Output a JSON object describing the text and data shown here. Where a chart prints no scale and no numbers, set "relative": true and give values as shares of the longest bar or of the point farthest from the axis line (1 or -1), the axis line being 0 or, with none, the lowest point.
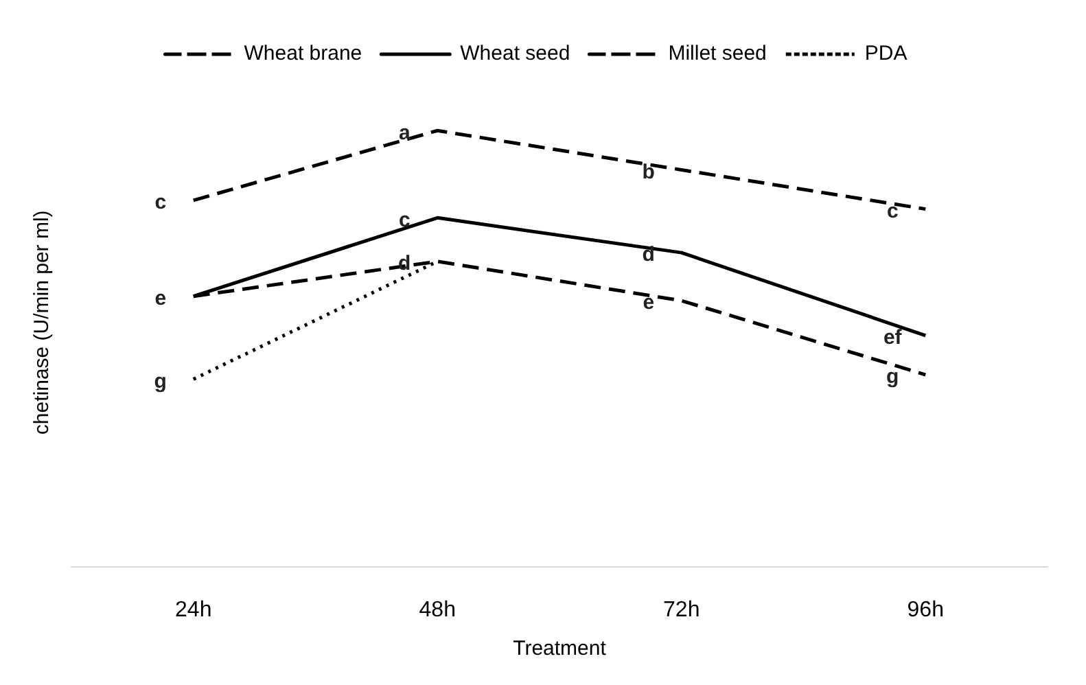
{
  "chart_data": {
    "type": "line",
    "relative": true,
    "xlabel": "Treatment",
    "ylabel": "chetinase (U/min per ml)",
    "categories": [
      "24h",
      "48h",
      "72h",
      "96h"
    ],
    "legend": "top",
    "grid": false,
    "marker": "none",
    "series": [
      {
        "name": "Wheat brane",
        "color": "#000000",
        "line_style": "dashed",
        "values": [
          0.84,
          1,
          0.91,
          0.82
        ]
      },
      {
        "name": "Wheat seed",
        "color": "#000000",
        "line_style": "solid",
        "values": [
          0.62,
          0.8,
          0.72,
          0.53
        ]
      },
      {
        "name": "Millet seed",
        "color": "#000000",
        "line_style": "dashed",
        "values": [
          0.62,
          0.7,
          0.61,
          0.44
        ]
      },
      {
        "name": "PDA",
        "color": "#000000",
        "line_style": "dotted",
        "values": [
          0.43,
          0.7,
          null,
          null
        ]
      }
    ],
    "annotations": [
      {
        "text": "c",
        "x": "24h",
        "y": 0.84
      },
      {
        "text": "e",
        "x": "24h",
        "y": 0.62
      },
      {
        "text": "g",
        "x": "24h",
        "y": 0.43
      },
      {
        "text": "a",
        "x": "48h",
        "y": 1
      },
      {
        "text": "c",
        "x": "48h",
        "y": 0.8
      },
      {
        "text": "d",
        "x": "48h",
        "y": 0.7
      },
      {
        "text": "b",
        "x": "72h",
        "y": 0.91
      },
      {
        "text": "d",
        "x": "72h",
        "y": 0.72
      },
      {
        "text": "e",
        "x": "72h",
        "y": 0.61
      },
      {
        "text": "c",
        "x": "96h",
        "y": 0.82
      },
      {
        "text": "ef",
        "x": "96h",
        "y": 0.53
      },
      {
        "text": "g",
        "x": "96h",
        "y": 0.44
      }
    ]
  }
}
